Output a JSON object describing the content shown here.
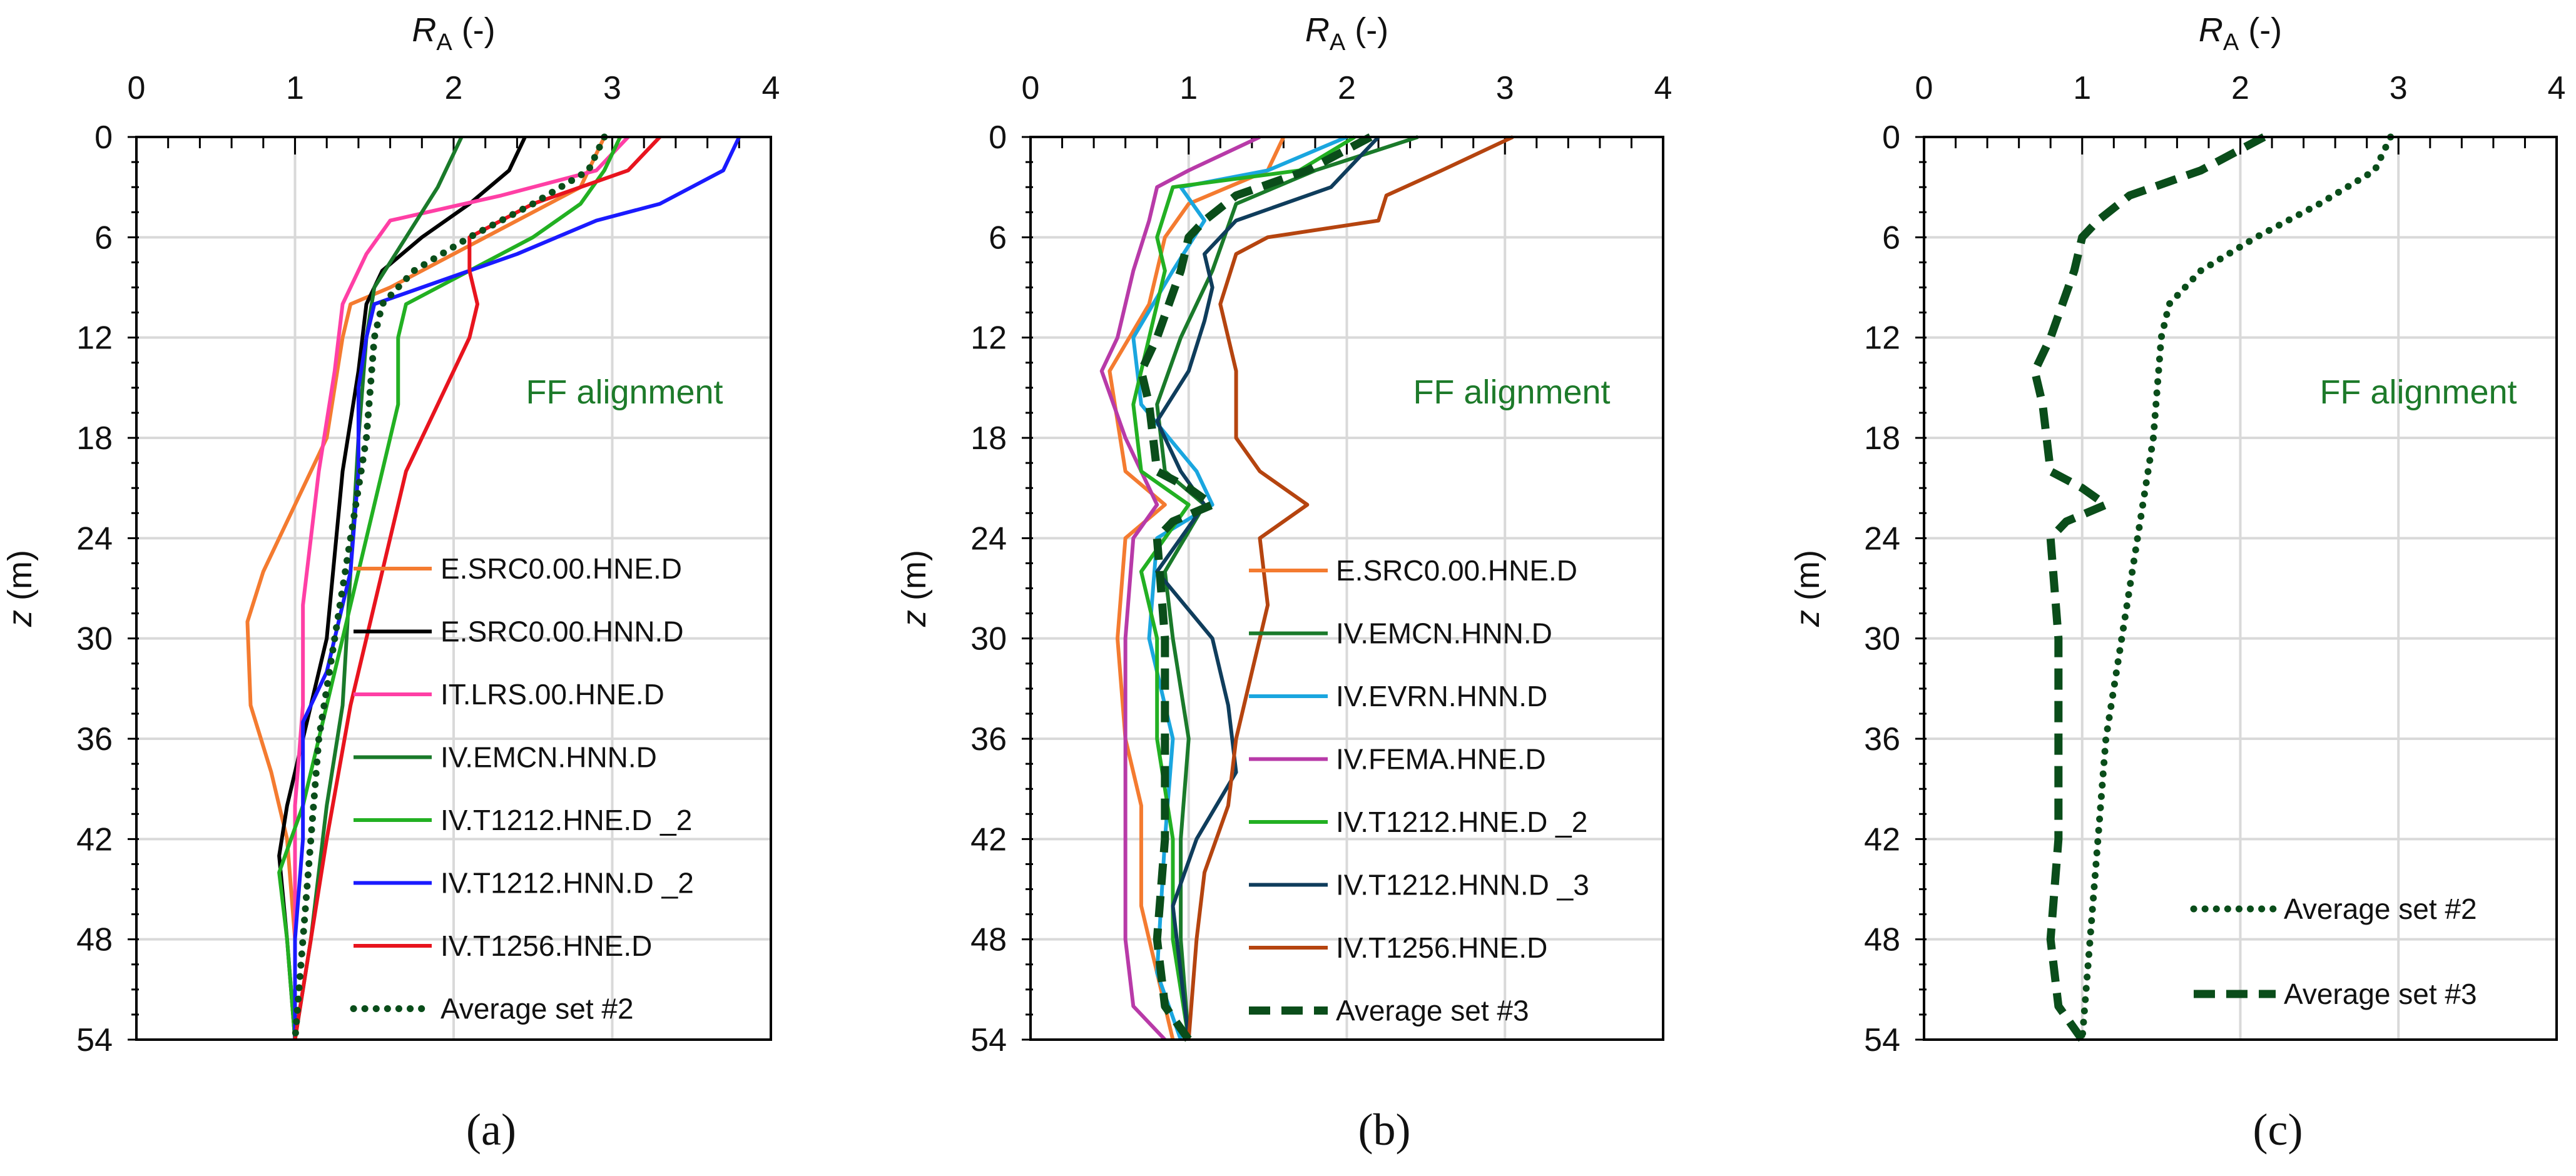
{
  "chart_data": [
    {
      "type": "line",
      "panel_label": "(a)",
      "xlabel_main": "R",
      "xlabel_sub": "A",
      "xlabel_unit": " (-)",
      "ylabel_main": "z",
      "ylabel_unit": " (m)",
      "xlim": [
        0,
        4
      ],
      "ylim": [
        0,
        54
      ],
      "y_inverted": true,
      "x_axis_position": "top",
      "xticks": [
        0,
        1,
        2,
        3,
        4
      ],
      "yticks": [
        0,
        6,
        12,
        18,
        24,
        30,
        36,
        42,
        48,
        54
      ],
      "grid": true,
      "annotation": "FF alignment",
      "legend_placement": "lower-right",
      "series": [
        {
          "name": "E.SRC0.00.HNE.D",
          "color": "#f47b30",
          "style": "solid",
          "z": [
            0,
            3,
            6,
            9,
            10,
            12,
            18,
            22,
            26,
            29,
            34,
            38,
            42,
            48,
            54
          ],
          "ra": [
            2.95,
            2.8,
            2.2,
            1.6,
            1.35,
            1.3,
            1.2,
            1.0,
            0.8,
            0.7,
            0.72,
            0.85,
            0.95,
            1.0,
            1.0
          ]
        },
        {
          "name": "E.SRC0.00.HNN.D",
          "color": "#000000",
          "style": "solid",
          "z": [
            0,
            2,
            4,
            6,
            8,
            10,
            14,
            20,
            30,
            36,
            40,
            43,
            48,
            54
          ],
          "ra": [
            2.45,
            2.35,
            2.1,
            1.8,
            1.55,
            1.45,
            1.4,
            1.3,
            1.2,
            1.05,
            0.95,
            0.9,
            0.95,
            1.0
          ]
        },
        {
          "name": "IT.LRS.00.HNE.D",
          "color": "#ff3fa5",
          "style": "solid",
          "z": [
            0,
            2,
            3.5,
            5,
            7,
            10,
            14,
            20,
            28,
            34,
            40,
            48,
            54
          ],
          "ra": [
            3.1,
            2.9,
            2.3,
            1.6,
            1.45,
            1.3,
            1.25,
            1.15,
            1.05,
            1.05,
            1.0,
            1.0,
            1.0
          ]
        },
        {
          "name": "IV.EMCN.HNN.D",
          "color": "#1a7a2a",
          "style": "solid",
          "z": [
            0,
            3,
            6,
            9,
            12,
            18,
            26,
            34,
            40,
            48,
            54
          ],
          "ra": [
            2.05,
            1.9,
            1.7,
            1.5,
            1.45,
            1.4,
            1.35,
            1.3,
            1.2,
            1.1,
            1.0
          ]
        },
        {
          "name": "IV.T1212.HNE.D _2",
          "color": "#22b022",
          "style": "solid",
          "z": [
            0,
            2,
            4,
            6,
            8,
            10,
            12,
            16,
            20,
            26,
            34,
            40,
            44,
            48,
            54
          ],
          "ra": [
            3.05,
            2.95,
            2.8,
            2.5,
            2.1,
            1.7,
            1.65,
            1.65,
            1.55,
            1.4,
            1.2,
            1.05,
            0.9,
            0.95,
            1.0
          ]
        },
        {
          "name": "IV.T1212.HNN.D _2",
          "color": "#1a1aff",
          "style": "solid",
          "z": [
            0,
            2,
            4,
            5,
            7,
            9,
            10,
            12,
            15,
            20,
            26,
            32,
            35,
            42,
            48,
            54
          ],
          "ra": [
            3.8,
            3.7,
            3.3,
            2.9,
            2.4,
            1.8,
            1.5,
            1.45,
            1.4,
            1.4,
            1.35,
            1.2,
            1.05,
            1.05,
            1.0,
            1.0
          ]
        },
        {
          "name": "IV.T1256.HNE.D",
          "color": "#e8141e",
          "style": "solid",
          "z": [
            0,
            2,
            4,
            6,
            8,
            10,
            12,
            16,
            20,
            26,
            34,
            42,
            48,
            54
          ],
          "ra": [
            3.3,
            3.1,
            2.5,
            2.1,
            2.1,
            2.15,
            2.1,
            1.9,
            1.7,
            1.55,
            1.35,
            1.2,
            1.1,
            1.0
          ]
        },
        {
          "name": "Average set #2",
          "color": "#0a4d1a",
          "style": "dotted",
          "z": [
            0,
            2,
            4,
            6,
            8,
            10,
            12,
            18,
            24,
            30,
            36,
            42,
            48,
            54
          ],
          "ra": [
            2.95,
            2.85,
            2.5,
            2.1,
            1.75,
            1.55,
            1.5,
            1.45,
            1.35,
            1.25,
            1.15,
            1.1,
            1.05,
            1.0
          ]
        }
      ]
    },
    {
      "type": "line",
      "panel_label": "(b)",
      "xlabel_main": "R",
      "xlabel_sub": "A",
      "xlabel_unit": " (-)",
      "ylabel_main": "z",
      "ylabel_unit": " (m)",
      "xlim": [
        0,
        4
      ],
      "ylim": [
        0,
        54
      ],
      "y_inverted": true,
      "x_axis_position": "top",
      "xticks": [
        0,
        1,
        2,
        3,
        4
      ],
      "yticks": [
        0,
        6,
        12,
        18,
        24,
        30,
        36,
        42,
        48,
        54
      ],
      "grid": true,
      "annotation": "FF alignment",
      "legend_placement": "lower-right",
      "series": [
        {
          "name": "E.SRC0.00.HNE.D",
          "color": "#f47b30",
          "style": "solid",
          "z": [
            0,
            2,
            4,
            6,
            10,
            14,
            20,
            22,
            24,
            30,
            36,
            40,
            46,
            52,
            54
          ],
          "ra": [
            1.6,
            1.5,
            1.0,
            0.85,
            0.75,
            0.5,
            0.6,
            0.85,
            0.6,
            0.55,
            0.6,
            0.7,
            0.7,
            0.85,
            0.9
          ]
        },
        {
          "name": "IV.EMCN.HNN.D",
          "color": "#1a7a2a",
          "style": "solid",
          "z": [
            0,
            2,
            4,
            8,
            12,
            16,
            20,
            22,
            26,
            30,
            36,
            42,
            48,
            54
          ],
          "ra": [
            2.45,
            1.8,
            1.3,
            1.15,
            0.95,
            0.8,
            0.85,
            1.1,
            0.85,
            0.9,
            1.0,
            0.95,
            0.95,
            1.0
          ]
        },
        {
          "name": "IV.EVRN.HNN.D",
          "color": "#1aa6df",
          "style": "solid",
          "z": [
            0,
            2,
            3,
            5,
            8,
            12,
            16,
            20,
            22,
            24,
            30,
            36,
            42,
            50,
            54
          ],
          "ra": [
            2.0,
            1.5,
            0.95,
            1.1,
            0.9,
            0.65,
            0.7,
            1.05,
            1.15,
            0.8,
            0.75,
            0.9,
            0.85,
            0.8,
            0.95
          ]
        },
        {
          "name": "IV.FEMA.HNE.D",
          "color": "#b83aa8",
          "style": "solid",
          "z": [
            0,
            2,
            3,
            5,
            8,
            12,
            14,
            18,
            22,
            24,
            30,
            36,
            42,
            48,
            52,
            54
          ],
          "ra": [
            1.45,
            1.0,
            0.8,
            0.75,
            0.65,
            0.55,
            0.45,
            0.6,
            0.8,
            0.65,
            0.6,
            0.6,
            0.6,
            0.6,
            0.65,
            0.85
          ]
        },
        {
          "name": "IV.T1212.HNE.D _2",
          "color": "#22b022",
          "style": "solid",
          "z": [
            0,
            2,
            3,
            6,
            8,
            12,
            16,
            20,
            22,
            26,
            30,
            36,
            42,
            48,
            54
          ],
          "ra": [
            2.05,
            1.7,
            0.9,
            0.8,
            0.85,
            0.75,
            0.65,
            0.7,
            1.0,
            0.7,
            0.8,
            0.8,
            0.9,
            0.9,
            1.0
          ]
        },
        {
          "name": "IV.T1212.HNN.D _3",
          "color": "#0f3d5c",
          "style": "solid",
          "z": [
            0,
            3,
            5,
            7,
            9,
            11,
            14,
            17,
            20,
            22,
            26,
            30,
            34,
            38,
            42,
            46,
            50,
            54
          ],
          "ra": [
            2.2,
            1.9,
            1.3,
            1.1,
            1.15,
            1.1,
            1.0,
            0.8,
            0.95,
            1.1,
            0.8,
            1.15,
            1.25,
            1.3,
            1.05,
            0.9,
            0.95,
            1.0
          ]
        },
        {
          "name": "IV.T1256.HNE.D",
          "color": "#b5440f",
          "style": "solid",
          "z": [
            0,
            2,
            3.5,
            5,
            6,
            7,
            10,
            14,
            18,
            20,
            22,
            24,
            28,
            32,
            36,
            40,
            44,
            48,
            54
          ],
          "ra": [
            3.05,
            2.6,
            2.25,
            2.2,
            1.5,
            1.3,
            1.2,
            1.3,
            1.3,
            1.45,
            1.75,
            1.45,
            1.5,
            1.4,
            1.3,
            1.25,
            1.1,
            1.05,
            1.0
          ]
        },
        {
          "name": "Average set #3",
          "color": "#0a4d1a",
          "style": "dashed",
          "z": [
            0,
            2,
            3.5,
            5,
            6,
            8,
            12,
            14,
            16,
            20,
            21,
            22,
            23,
            24,
            30,
            36,
            42,
            48,
            52,
            54
          ],
          "ra": [
            2.15,
            1.75,
            1.3,
            1.1,
            1.0,
            0.95,
            0.8,
            0.7,
            0.75,
            0.8,
            1.0,
            1.15,
            0.9,
            0.8,
            0.85,
            0.85,
            0.85,
            0.8,
            0.85,
            1.0
          ]
        }
      ]
    },
    {
      "type": "line",
      "panel_label": "(c)",
      "xlabel_main": "R",
      "xlabel_sub": "A",
      "xlabel_unit": " (-)",
      "ylabel_main": "z",
      "ylabel_unit": " (m)",
      "xlim": [
        0,
        4
      ],
      "ylim": [
        0,
        54
      ],
      "y_inverted": true,
      "x_axis_position": "top",
      "xticks": [
        0,
        1,
        2,
        3,
        4
      ],
      "yticks": [
        0,
        6,
        12,
        18,
        24,
        30,
        36,
        42,
        48,
        54
      ],
      "grid": true,
      "annotation": "FF alignment",
      "legend_placement": "lower-right",
      "series": [
        {
          "name": "Average set #2",
          "color": "#0a4d1a",
          "style": "dotted",
          "z": [
            0,
            2,
            4,
            6,
            8,
            10,
            12,
            18,
            24,
            30,
            36,
            42,
            48,
            54
          ],
          "ra": [
            2.95,
            2.85,
            2.5,
            2.1,
            1.75,
            1.55,
            1.5,
            1.45,
            1.35,
            1.25,
            1.15,
            1.1,
            1.05,
            1.0
          ]
        },
        {
          "name": "Average set #3",
          "color": "#0a4d1a",
          "style": "dashed",
          "z": [
            0,
            2,
            3.5,
            5,
            6,
            8,
            12,
            14,
            16,
            20,
            21,
            22,
            23,
            24,
            30,
            36,
            42,
            48,
            52,
            54
          ],
          "ra": [
            2.15,
            1.75,
            1.3,
            1.1,
            1.0,
            0.95,
            0.8,
            0.7,
            0.75,
            0.8,
            1.0,
            1.15,
            0.9,
            0.8,
            0.85,
            0.85,
            0.85,
            0.8,
            0.85,
            1.0
          ]
        }
      ]
    }
  ]
}
